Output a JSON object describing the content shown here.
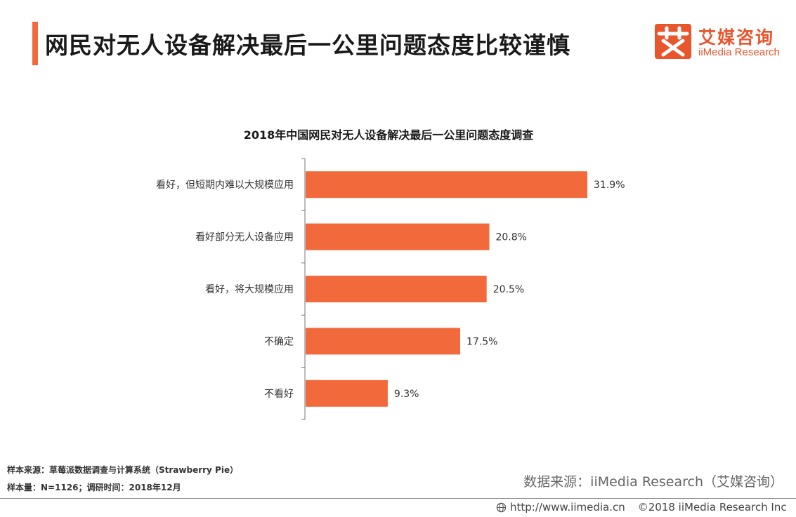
{
  "page": {
    "title": "网民对无人设备解决最后一公里问题态度比较谨慎"
  },
  "logo": {
    "glyph": "艾",
    "name_cn": "艾媒咨询",
    "name_en": "iiMedia Research",
    "color": "#e8562e"
  },
  "notes": {
    "sample_source": "样本来源：草莓派数据调查与计算系统（Strawberry Pie）",
    "sample_size": "样本量：N=1126；调研时间：2018年12月"
  },
  "source": "数据来源：iiMedia Research（艾媒咨询）",
  "footer": {
    "url": "http://www.iimedia.cn",
    "copyright": "©2018  iiMedia Research  Inc"
  },
  "colors": {
    "accent": "#f26a3c",
    "bar": "#f26a3c"
  },
  "chart_data": {
    "type": "bar",
    "orientation": "horizontal",
    "title": "2018年中国网民对无人设备解决最后一公里问题态度调查",
    "categories": [
      "看好，但短期内难以大规模应用",
      "看好部分无人设备应用",
      "看好，将大规模应用",
      "不确定",
      "不看好"
    ],
    "values": [
      31.9,
      20.8,
      20.5,
      17.5,
      9.3
    ],
    "value_labels": [
      "31.9%",
      "20.8%",
      "20.5%",
      "17.5%",
      "9.3%"
    ],
    "unit": "%",
    "xlim": [
      0,
      35
    ],
    "grid": false,
    "legend": false
  }
}
